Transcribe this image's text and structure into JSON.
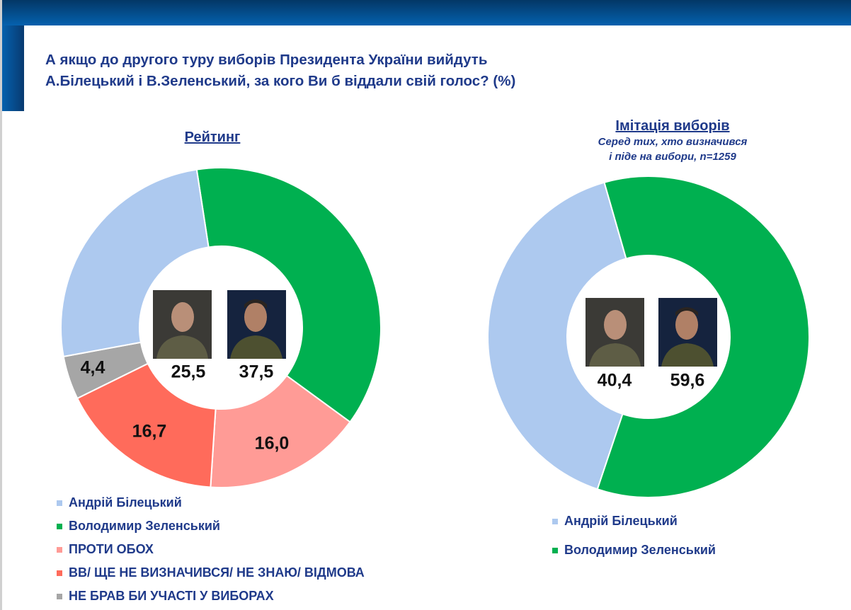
{
  "title_lines": [
    "А якщо до другого туру виборів Президента України вийдуть",
    "А.Білецький і В.Зеленський, за кого Ви б віддали свій голос? (%)"
  ],
  "chart_data": [
    {
      "type": "pie",
      "variant": "donut",
      "title": "Рейтинг",
      "start_angle_deg": -8.7,
      "categories": [
        "Володимир Зеленський",
        "ПРОТИ ОБОХ",
        "ВВ/ ЩЕ НЕ ВИЗНАЧИВСЯ/ НЕ ЗНАЮ/ ВІДМОВА",
        "НЕ БРАВ БИ УЧАСТІ У ВИБОРАХ",
        "Андрій Білецький"
      ],
      "values": [
        37.5,
        16.0,
        16.7,
        4.4,
        25.5
      ],
      "labels": [
        "37,5",
        "16,0",
        "16,7",
        "4,4",
        "25,5"
      ],
      "colors": [
        "#00b050",
        "#ff9b96",
        "#ff6b5b",
        "#a6a6a6",
        "#adc9ef"
      ],
      "legend": {
        "placement": "bottom",
        "items": [
          {
            "label": "Андрій Білецький",
            "color": "#adc9ef"
          },
          {
            "label": "Володимир Зеленський",
            "color": "#00b050"
          },
          {
            "label": "ПРОТИ ОБОХ",
            "color": "#ff9b96"
          },
          {
            "label": "ВВ/ ЩЕ НЕ ВИЗНАЧИВСЯ/ НЕ ЗНАЮ/ ВІДМОВА",
            "color": "#ff6b5b"
          },
          {
            "label": "НЕ БРАВ БИ УЧАСТІ У ВИБОРАХ",
            "color": "#a6a6a6"
          }
        ]
      }
    },
    {
      "type": "pie",
      "variant": "donut",
      "title": "Імітація виборів",
      "subtitle_lines": [
        "Серед тих, хто визначився",
        "і піде на вибори, n=1259"
      ],
      "start_angle_deg": -16,
      "categories": [
        "Володимир Зеленський",
        "Андрій Білецький"
      ],
      "values": [
        59.6,
        40.4
      ],
      "labels": [
        "59,6",
        "40,4"
      ],
      "colors": [
        "#00b050",
        "#adc9ef"
      ],
      "legend": {
        "placement": "bottom",
        "items": [
          {
            "label": "Андрій Білецький",
            "color": "#adc9ef"
          },
          {
            "label": "Володимир Зеленський",
            "color": "#00b050"
          }
        ]
      }
    }
  ]
}
